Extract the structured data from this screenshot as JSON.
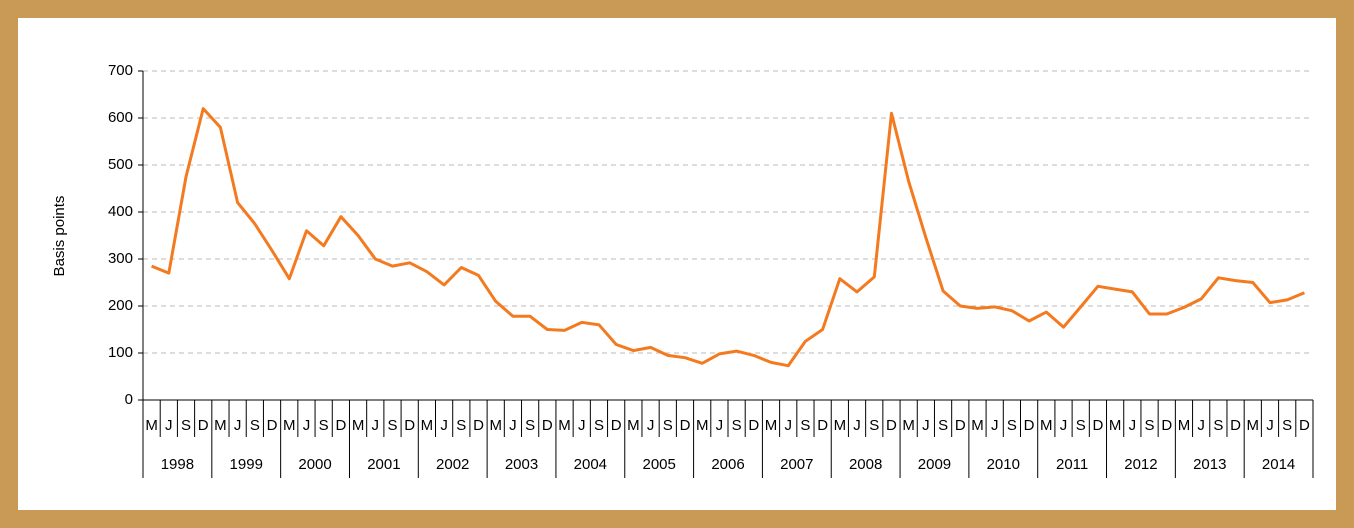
{
  "chart_data": {
    "type": "line",
    "y_label": "Basis points",
    "categories": [
      "M",
      "J",
      "S",
      "D",
      "M",
      "J",
      "S",
      "D",
      "M",
      "J",
      "S",
      "D",
      "M",
      "J",
      "S",
      "D",
      "M",
      "J",
      "S",
      "D",
      "M",
      "J",
      "S",
      "D",
      "M",
      "J",
      "S",
      "D",
      "M",
      "J",
      "S",
      "D",
      "M",
      "J",
      "S",
      "D",
      "M",
      "J",
      "S",
      "D",
      "M",
      "J",
      "S",
      "D",
      "M",
      "J",
      "S",
      "D",
      "M",
      "J",
      "S",
      "D",
      "M",
      "J",
      "S",
      "D",
      "M",
      "J",
      "S",
      "D",
      "M",
      "J",
      "S",
      "D",
      "M",
      "J",
      "S",
      "D"
    ],
    "years": [
      "1998",
      "1999",
      "2000",
      "2001",
      "2002",
      "2003",
      "2004",
      "2005",
      "2006",
      "2007",
      "2008",
      "2009",
      "2010",
      "2011",
      "2012",
      "2013",
      "2014"
    ],
    "series": [
      {
        "color": "#f47a20",
        "values": [
          285,
          270,
          475,
          620,
          580,
          420,
          375,
          318,
          258,
          360,
          328,
          390,
          350,
          300,
          285,
          292,
          273,
          245,
          282,
          265,
          210,
          178,
          178,
          150,
          148,
          165,
          160,
          118,
          105,
          112,
          95,
          90,
          78,
          98,
          104,
          95,
          80,
          73,
          125,
          150,
          258,
          230,
          262,
          610,
          465,
          345,
          232,
          200,
          195,
          198,
          190,
          168,
          187,
          155,
          198,
          242,
          236,
          230,
          183,
          183,
          197,
          215,
          260,
          254,
          250,
          207,
          213,
          228
        ]
      }
    ],
    "ylim": [
      0,
      700
    ],
    "yticks": [
      0,
      100,
      200,
      300,
      400,
      500,
      600,
      700
    ],
    "grid": true
  }
}
